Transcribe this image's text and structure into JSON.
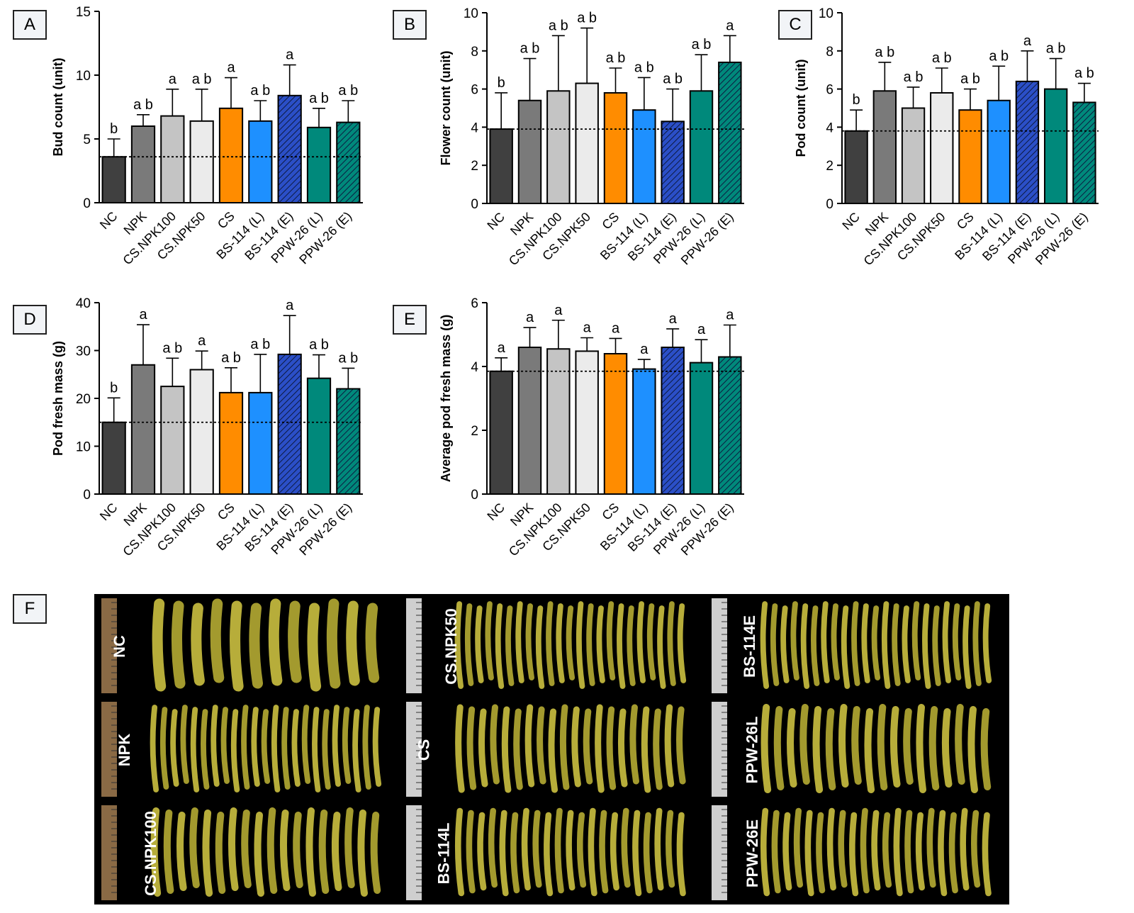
{
  "categories": [
    "NC",
    "NPK",
    "CS.NPK100",
    "CS.NPK50",
    "CS",
    "BS-114 (L)",
    "BS-114 (E)",
    "PPW-26 (L)",
    "PPW-26 (E)"
  ],
  "bar_colors": [
    "#404040",
    "#7a7a7a",
    "#c4c4c4",
    "#ebebeb",
    "#ff8c00",
    "#1e90ff",
    "#2b4fc7",
    "#00897b",
    "#00897b"
  ],
  "bar_hatched": [
    false,
    false,
    false,
    false,
    false,
    false,
    true,
    false,
    true
  ],
  "panels": {
    "A": {
      "label": "A",
      "ylabel": "Bud count (unit)",
      "ylim": [
        0,
        15
      ],
      "yticks": [
        "0",
        "5",
        "10",
        "15"
      ]
    },
    "B": {
      "label": "B",
      "ylabel": "Flower count (unit)",
      "ylim": [
        0,
        10
      ],
      "yticks": [
        "0",
        "2",
        "4",
        "6",
        "8",
        "10"
      ]
    },
    "C": {
      "label": "C",
      "ylabel": "Pod count (unit)",
      "ylim": [
        0,
        10
      ],
      "yticks": [
        "0",
        "2",
        "4",
        "6",
        "8",
        "10"
      ]
    },
    "D": {
      "label": "D",
      "ylabel": "Pod fresh mass (g)",
      "ylim": [
        0,
        40
      ],
      "yticks": [
        "0",
        "10",
        "20",
        "30",
        "40"
      ]
    },
    "E": {
      "label": "E",
      "ylabel": "Average pod fresh mass (g)",
      "ylim": [
        0,
        6
      ],
      "yticks": [
        "0",
        "2",
        "4",
        "6"
      ]
    },
    "F": {
      "label": "F"
    }
  },
  "chart_data": [
    {
      "panel": "A",
      "type": "bar",
      "ylabel": "Bud count (unit)",
      "ylim": [
        0,
        15
      ],
      "categories": [
        "NC",
        "NPK",
        "CS.NPK100",
        "CS.NPK50",
        "CS",
        "BS-114 (L)",
        "BS-114 (E)",
        "PPW-26 (L)",
        "PPW-26 (E)"
      ],
      "values": [
        3.6,
        6.0,
        6.8,
        6.4,
        7.4,
        6.4,
        8.4,
        5.9,
        6.3
      ],
      "errors": [
        1.4,
        0.9,
        2.1,
        2.5,
        2.4,
        1.6,
        2.4,
        1.5,
        1.7
      ],
      "letters": [
        "b",
        "a b",
        "a",
        "a b",
        "a",
        "a b",
        "a",
        "a b",
        "a b"
      ],
      "reference_line": 3.6
    },
    {
      "panel": "B",
      "type": "bar",
      "ylabel": "Flower count (unit)",
      "ylim": [
        0,
        10
      ],
      "categories": [
        "NC",
        "NPK",
        "CS.NPK100",
        "CS.NPK50",
        "CS",
        "BS-114 (L)",
        "BS-114 (E)",
        "PPW-26 (L)",
        "PPW-26 (E)"
      ],
      "values": [
        3.9,
        5.4,
        5.9,
        6.3,
        5.8,
        4.9,
        4.3,
        5.9,
        7.4
      ],
      "errors": [
        1.9,
        2.2,
        2.9,
        2.9,
        1.3,
        1.7,
        1.7,
        1.9,
        1.4
      ],
      "letters": [
        "b",
        "a b",
        "a b",
        "a b",
        "a b",
        "a b",
        "a b",
        "a b",
        "a"
      ],
      "reference_line": 3.9
    },
    {
      "panel": "C",
      "type": "bar",
      "ylabel": "Pod count (unit)",
      "ylim": [
        0,
        10
      ],
      "categories": [
        "NC",
        "NPK",
        "CS.NPK100",
        "CS.NPK50",
        "CS",
        "BS-114 (L)",
        "BS-114 (E)",
        "PPW-26 (L)",
        "PPW-26 (E)"
      ],
      "values": [
        3.8,
        5.9,
        5.0,
        5.8,
        4.9,
        5.4,
        6.4,
        6.0,
        5.3
      ],
      "errors": [
        1.1,
        1.5,
        1.1,
        1.3,
        1.1,
        1.8,
        1.6,
        1.6,
        1.0
      ],
      "letters": [
        "b",
        "a b",
        "a b",
        "a b",
        "a b",
        "a b",
        "a",
        "a b",
        "a b"
      ],
      "reference_line": 3.8
    },
    {
      "panel": "D",
      "type": "bar",
      "ylabel": "Pod fresh mass (g)",
      "ylim": [
        0,
        40
      ],
      "categories": [
        "NC",
        "NPK",
        "CS.NPK100",
        "CS.NPK50",
        "CS",
        "BS-114 (L)",
        "BS-114 (E)",
        "PPW-26 (L)",
        "PPW-26 (E)"
      ],
      "values": [
        15.0,
        27.0,
        22.5,
        26.0,
        21.2,
        21.2,
        29.2,
        24.2,
        22.0
      ],
      "errors": [
        5.1,
        8.4,
        5.9,
        3.9,
        5.2,
        8.0,
        8.1,
        4.9,
        4.3
      ],
      "letters": [
        "b",
        "a",
        "a b",
        "a",
        "a b",
        "a b",
        "a",
        "a b",
        "a b"
      ],
      "reference_line": 15.0
    },
    {
      "panel": "E",
      "type": "bar",
      "ylabel": "Average pod fresh mass (g)",
      "ylim": [
        0,
        6
      ],
      "categories": [
        "NC",
        "NPK",
        "CS.NPK100",
        "CS.NPK50",
        "CS",
        "BS-114 (L)",
        "BS-114 (E)",
        "PPW-26 (L)",
        "PPW-26 (E)"
      ],
      "values": [
        3.85,
        4.6,
        4.55,
        4.48,
        4.4,
        3.92,
        4.6,
        4.12,
        4.3
      ],
      "errors": [
        0.42,
        0.62,
        0.9,
        0.42,
        0.48,
        0.3,
        0.58,
        0.72,
        1.0
      ],
      "letters": [
        "a",
        "a",
        "a",
        "a",
        "a",
        "a",
        "a",
        "a",
        "a"
      ],
      "reference_line": 3.85
    }
  ],
  "photo": {
    "groups": [
      {
        "label": "NC",
        "pods": 12
      },
      {
        "label": "NPK",
        "pods": 23
      },
      {
        "label": "CS.NPK100",
        "pods": 18
      },
      {
        "label": "CS.NPK50",
        "pods": 23
      },
      {
        "label": "CS",
        "pods": 20
      },
      {
        "label": "BS-114L",
        "pods": 21
      },
      {
        "label": "BS-114E",
        "pods": 23
      },
      {
        "label": "PPW-26L",
        "pods": 18
      },
      {
        "label": "PPW-26E",
        "pods": 21
      }
    ]
  }
}
